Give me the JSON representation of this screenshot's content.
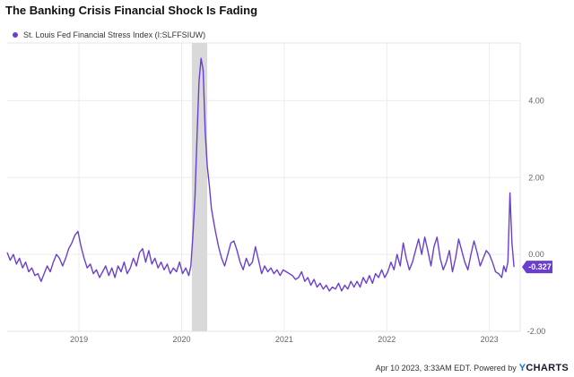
{
  "title": "The Banking Crisis Financial Shock Is Fading",
  "legend_label": "St. Louis Fed Financial Stress Index (I:SLFFSIUW)",
  "footer": {
    "text": "Apr 10 2023, 3:33AM EDT. Powered by",
    "brand_y": "Y",
    "brand_rest": "CHARTS"
  },
  "colors": {
    "series": "#6a3fd0",
    "recession": "#d9d9d9",
    "grid": "#ececec",
    "brand": "#1f6fd1"
  },
  "chart_data": {
    "type": "line",
    "ylim": [
      -2.0,
      5.5
    ],
    "xlim": [
      2018.3,
      2023.3
    ],
    "y_ticks": [
      4.0,
      2.0,
      0.0,
      -2.0
    ],
    "y_tick_labels": [
      "4.00",
      "2.00",
      "0.00",
      "-2.00"
    ],
    "x_ticks": [
      2019,
      2020,
      2021,
      2022,
      2023
    ],
    "x_tick_labels": [
      "2019",
      "2020",
      "2021",
      "2022",
      "2023"
    ],
    "grid": true,
    "recession_band": [
      2020.1,
      2020.25
    ],
    "last_value_label": "-0.327",
    "series": [
      {
        "name": "St. Louis Fed Financial Stress Index (I:SLFFSIUW)",
        "color": "#6a3fd0",
        "points": [
          [
            2018.3,
            0.05
          ],
          [
            2018.33,
            -0.15
          ],
          [
            2018.36,
            0.0
          ],
          [
            2018.39,
            -0.25
          ],
          [
            2018.42,
            -0.1
          ],
          [
            2018.45,
            -0.35
          ],
          [
            2018.48,
            -0.2
          ],
          [
            2018.51,
            -0.45
          ],
          [
            2018.54,
            -0.35
          ],
          [
            2018.57,
            -0.55
          ],
          [
            2018.6,
            -0.5
          ],
          [
            2018.63,
            -0.7
          ],
          [
            2018.66,
            -0.5
          ],
          [
            2018.69,
            -0.3
          ],
          [
            2018.72,
            -0.45
          ],
          [
            2018.75,
            -0.2
          ],
          [
            2018.78,
            0.0
          ],
          [
            2018.81,
            -0.1
          ],
          [
            2018.84,
            -0.3
          ],
          [
            2018.87,
            -0.1
          ],
          [
            2018.9,
            0.15
          ],
          [
            2018.93,
            0.3
          ],
          [
            2018.96,
            0.5
          ],
          [
            2018.99,
            0.6
          ],
          [
            2019.02,
            0.2
          ],
          [
            2019.05,
            -0.1
          ],
          [
            2019.08,
            -0.35
          ],
          [
            2019.11,
            -0.25
          ],
          [
            2019.14,
            -0.5
          ],
          [
            2019.17,
            -0.4
          ],
          [
            2019.2,
            -0.6
          ],
          [
            2019.23,
            -0.45
          ],
          [
            2019.26,
            -0.3
          ],
          [
            2019.29,
            -0.55
          ],
          [
            2019.32,
            -0.35
          ],
          [
            2019.35,
            -0.6
          ],
          [
            2019.38,
            -0.3
          ],
          [
            2019.41,
            -0.45
          ],
          [
            2019.44,
            -0.2
          ],
          [
            2019.47,
            -0.5
          ],
          [
            2019.5,
            -0.35
          ],
          [
            2019.53,
            -0.1
          ],
          [
            2019.56,
            -0.3
          ],
          [
            2019.59,
            0.05
          ],
          [
            2019.62,
            0.15
          ],
          [
            2019.65,
            -0.2
          ],
          [
            2019.68,
            0.1
          ],
          [
            2019.71,
            -0.25
          ],
          [
            2019.74,
            -0.1
          ],
          [
            2019.77,
            -0.35
          ],
          [
            2019.8,
            -0.2
          ],
          [
            2019.83,
            -0.4
          ],
          [
            2019.86,
            -0.25
          ],
          [
            2019.89,
            -0.5
          ],
          [
            2019.92,
            -0.35
          ],
          [
            2019.95,
            -0.45
          ],
          [
            2019.98,
            -0.2
          ],
          [
            2020.01,
            -0.5
          ],
          [
            2020.04,
            -0.35
          ],
          [
            2020.07,
            -0.55
          ],
          [
            2020.09,
            -0.3
          ],
          [
            2020.11,
            0.5
          ],
          [
            2020.13,
            1.5
          ],
          [
            2020.15,
            3.0
          ],
          [
            2020.17,
            4.5
          ],
          [
            2020.19,
            5.1
          ],
          [
            2020.21,
            4.8
          ],
          [
            2020.23,
            3.2
          ],
          [
            2020.25,
            2.3
          ],
          [
            2020.27,
            1.8
          ],
          [
            2020.29,
            1.2
          ],
          [
            2020.31,
            0.9
          ],
          [
            2020.33,
            0.6
          ],
          [
            2020.36,
            0.2
          ],
          [
            2020.39,
            -0.1
          ],
          [
            2020.42,
            -0.3
          ],
          [
            2020.45,
            0.0
          ],
          [
            2020.48,
            0.3
          ],
          [
            2020.51,
            0.35
          ],
          [
            2020.54,
            0.1
          ],
          [
            2020.57,
            -0.2
          ],
          [
            2020.6,
            -0.4
          ],
          [
            2020.63,
            -0.1
          ],
          [
            2020.66,
            -0.3
          ],
          [
            2020.69,
            -0.2
          ],
          [
            2020.72,
            0.2
          ],
          [
            2020.75,
            -0.15
          ],
          [
            2020.78,
            -0.5
          ],
          [
            2020.81,
            -0.3
          ],
          [
            2020.84,
            -0.45
          ],
          [
            2020.87,
            -0.35
          ],
          [
            2020.9,
            -0.5
          ],
          [
            2020.93,
            -0.4
          ],
          [
            2020.96,
            -0.55
          ],
          [
            2020.99,
            -0.4
          ],
          [
            2021.02,
            -0.45
          ],
          [
            2021.05,
            -0.5
          ],
          [
            2021.08,
            -0.55
          ],
          [
            2021.11,
            -0.65
          ],
          [
            2021.14,
            -0.6
          ],
          [
            2021.17,
            -0.45
          ],
          [
            2021.2,
            -0.7
          ],
          [
            2021.23,
            -0.6
          ],
          [
            2021.26,
            -0.8
          ],
          [
            2021.29,
            -0.65
          ],
          [
            2021.32,
            -0.85
          ],
          [
            2021.35,
            -0.75
          ],
          [
            2021.38,
            -0.9
          ],
          [
            2021.41,
            -0.8
          ],
          [
            2021.44,
            -0.95
          ],
          [
            2021.47,
            -0.85
          ],
          [
            2021.5,
            -0.9
          ],
          [
            2021.53,
            -0.75
          ],
          [
            2021.56,
            -0.95
          ],
          [
            2021.59,
            -0.8
          ],
          [
            2021.62,
            -0.9
          ],
          [
            2021.65,
            -0.7
          ],
          [
            2021.68,
            -0.85
          ],
          [
            2021.71,
            -0.7
          ],
          [
            2021.74,
            -0.85
          ],
          [
            2021.77,
            -0.6
          ],
          [
            2021.8,
            -0.75
          ],
          [
            2021.83,
            -0.55
          ],
          [
            2021.86,
            -0.75
          ],
          [
            2021.89,
            -0.5
          ],
          [
            2021.92,
            -0.6
          ],
          [
            2021.95,
            -0.4
          ],
          [
            2021.98,
            -0.6
          ],
          [
            2022.01,
            -0.45
          ],
          [
            2022.04,
            -0.2
          ],
          [
            2022.07,
            -0.4
          ],
          [
            2022.1,
            0.0
          ],
          [
            2022.13,
            -0.3
          ],
          [
            2022.16,
            0.3
          ],
          [
            2022.19,
            -0.1
          ],
          [
            2022.22,
            -0.4
          ],
          [
            2022.25,
            -0.2
          ],
          [
            2022.28,
            0.1
          ],
          [
            2022.31,
            0.4
          ],
          [
            2022.34,
            0.0
          ],
          [
            2022.37,
            0.45
          ],
          [
            2022.4,
            0.1
          ],
          [
            2022.43,
            -0.3
          ],
          [
            2022.46,
            0.2
          ],
          [
            2022.49,
            0.45
          ],
          [
            2022.52,
            -0.1
          ],
          [
            2022.55,
            -0.4
          ],
          [
            2022.58,
            -0.2
          ],
          [
            2022.61,
            0.1
          ],
          [
            2022.64,
            -0.45
          ],
          [
            2022.67,
            -0.1
          ],
          [
            2022.7,
            0.4
          ],
          [
            2022.73,
            0.1
          ],
          [
            2022.76,
            -0.2
          ],
          [
            2022.79,
            -0.4
          ],
          [
            2022.82,
            0.0
          ],
          [
            2022.85,
            0.35
          ],
          [
            2022.88,
            0.05
          ],
          [
            2022.91,
            -0.3
          ],
          [
            2022.94,
            -0.1
          ],
          [
            2022.97,
            0.1
          ],
          [
            2023.0,
            0.0
          ],
          [
            2023.03,
            -0.2
          ],
          [
            2023.06,
            -0.45
          ],
          [
            2023.09,
            -0.5
          ],
          [
            2023.12,
            -0.6
          ],
          [
            2023.14,
            -0.3
          ],
          [
            2023.16,
            -0.45
          ],
          [
            2023.18,
            -0.2
          ],
          [
            2023.2,
            1.6
          ],
          [
            2023.22,
            0.3
          ],
          [
            2023.24,
            -0.327
          ]
        ]
      }
    ]
  }
}
